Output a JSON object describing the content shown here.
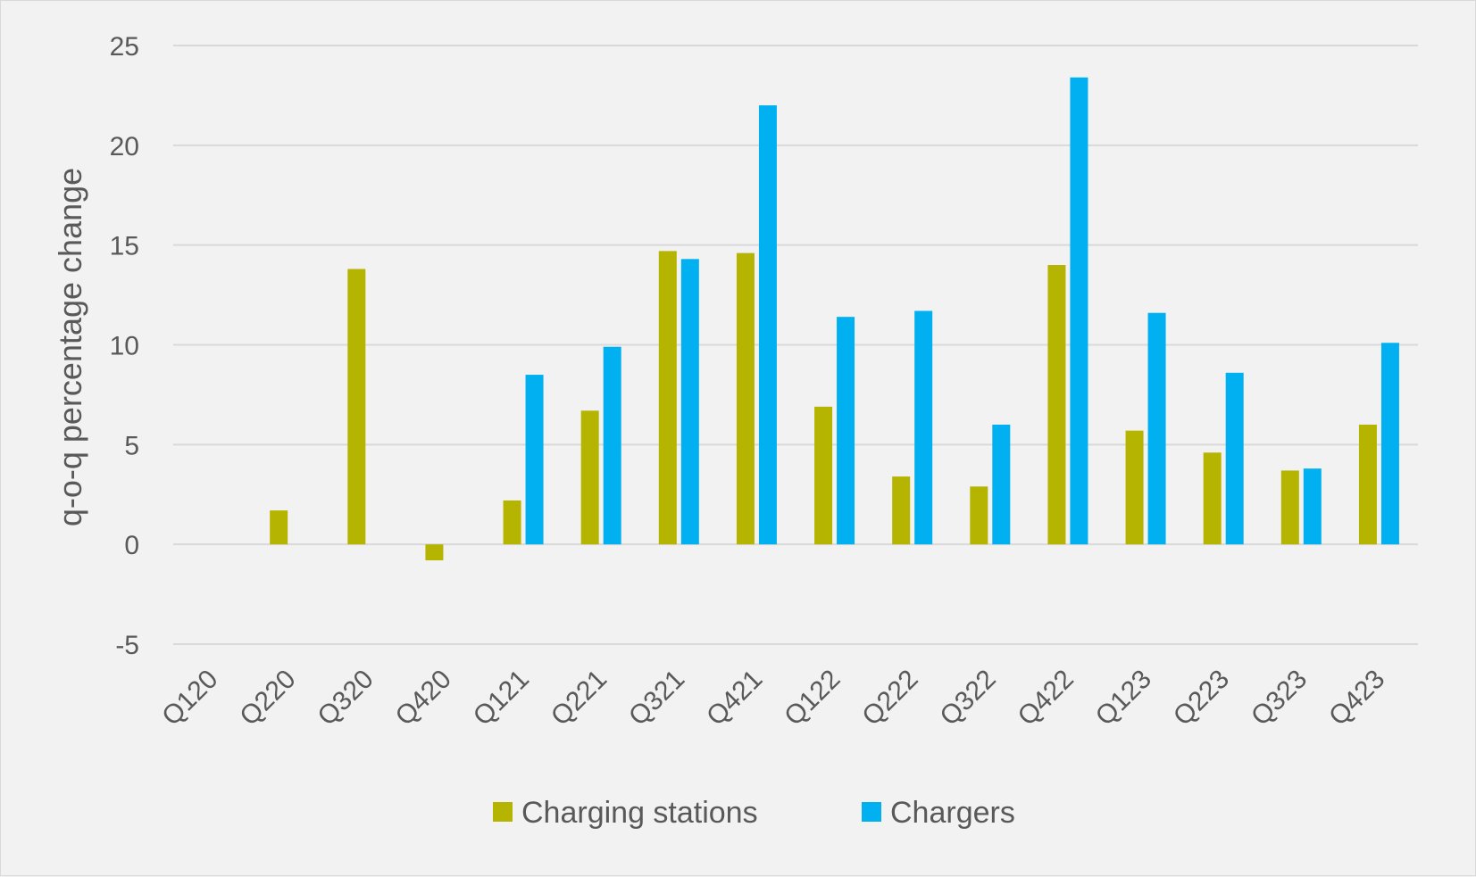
{
  "chart_data": {
    "type": "bar",
    "title": "",
    "xlabel": "",
    "ylabel": "q-o-q percentage change",
    "ylim": [
      -5,
      25
    ],
    "yticks": [
      -5,
      0,
      5,
      10,
      15,
      20,
      25
    ],
    "grid": true,
    "legend_position": "bottom",
    "categories": [
      "Q120",
      "Q220",
      "Q320",
      "Q420",
      "Q121",
      "Q221",
      "Q321",
      "Q421",
      "Q122",
      "Q222",
      "Q322",
      "Q422",
      "Q123",
      "Q223",
      "Q323",
      "Q423"
    ],
    "series": [
      {
        "name": "Charging stations",
        "color": "#b5b400",
        "values": [
          null,
          1.7,
          13.8,
          -0.8,
          2.2,
          6.7,
          14.7,
          14.6,
          6.9,
          3.4,
          2.9,
          14.0,
          5.7,
          4.6,
          3.7,
          6.0
        ]
      },
      {
        "name": "Chargers",
        "color": "#00b0f0",
        "values": [
          null,
          null,
          null,
          null,
          8.5,
          9.9,
          14.3,
          22.0,
          11.4,
          11.7,
          6.0,
          23.4,
          11.6,
          8.6,
          3.8,
          10.1
        ]
      }
    ]
  }
}
